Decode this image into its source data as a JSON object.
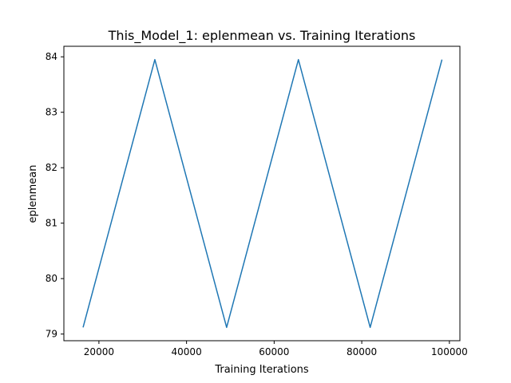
{
  "chart_data": {
    "type": "line",
    "title": "This_Model_1: eplenmean vs. Training Iterations",
    "xlabel": "Training Iterations",
    "ylabel": "eplenmean",
    "xlim": [
      12000,
      102400
    ],
    "ylim": [
      78.88,
      84.19
    ],
    "xticks": [
      20000,
      40000,
      60000,
      80000,
      100000
    ],
    "xtick_labels": [
      "20000",
      "40000",
      "60000",
      "80000",
      "100000"
    ],
    "yticks": [
      79,
      80,
      81,
      82,
      83,
      84
    ],
    "ytick_labels": [
      "79",
      "80",
      "81",
      "82",
      "83",
      "84"
    ],
    "grid": false,
    "series": [
      {
        "color": "#1f77b4",
        "x": [
          16384,
          32768,
          49152,
          65536,
          81920,
          98304
        ],
        "y": [
          79.12,
          83.95,
          79.12,
          83.95,
          79.12,
          83.95
        ]
      }
    ]
  }
}
